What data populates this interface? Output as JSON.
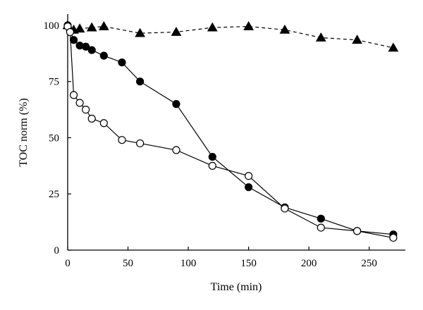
{
  "chart_data": {
    "type": "scatter",
    "xlabel": "Time (min)",
    "ylabel": "TOC norm (%)",
    "xlim": [
      0,
      280
    ],
    "ylim": [
      0,
      105
    ],
    "xticks": [
      0,
      50,
      100,
      150,
      200,
      250
    ],
    "yticks": [
      0,
      25,
      50,
      75,
      100
    ],
    "grid": false,
    "legend": "none",
    "series": [
      {
        "marker": "triangle-filled",
        "line": "dashed",
        "color": "#000000",
        "x": [
          0,
          5,
          10,
          20,
          30,
          60,
          90,
          120,
          150,
          180,
          210,
          240,
          270
        ],
        "y": [
          100,
          98,
          98.5,
          99,
          99.5,
          96.5,
          97,
          99,
          99.5,
          98,
          94.5,
          93.5,
          90
        ]
      },
      {
        "marker": "circle-filled",
        "line": "solid",
        "color": "#000000",
        "x": [
          0,
          2,
          5,
          10,
          15,
          20,
          30,
          45,
          60,
          90,
          120,
          150,
          180,
          210,
          240,
          270
        ],
        "y": [
          100,
          97.5,
          93.5,
          91,
          90.5,
          89,
          86.5,
          83.5,
          75,
          65,
          41.5,
          28,
          19,
          14,
          8.5,
          7
        ]
      },
      {
        "marker": "circle-open",
        "line": "solid",
        "color": "#000000",
        "x": [
          0,
          2,
          5,
          10,
          15,
          20,
          30,
          45,
          60,
          90,
          120,
          150,
          180,
          210,
          240,
          270
        ],
        "y": [
          99.5,
          97,
          69,
          65.5,
          62.5,
          58.5,
          56.5,
          49,
          47.5,
          44.5,
          37.5,
          33,
          18.5,
          10,
          8.5,
          5.5
        ]
      }
    ]
  }
}
